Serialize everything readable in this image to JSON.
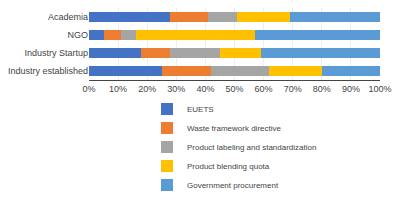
{
  "chart_data": {
    "type": "bar",
    "orientation": "horizontal",
    "stacked": true,
    "categories": [
      "Academia",
      "NGO",
      "Industry Startup",
      "Industry established"
    ],
    "series": [
      {
        "name": "EUETS",
        "color": "#4472c4",
        "values": [
          28,
          5,
          18,
          25
        ]
      },
      {
        "name": "Waste framework directive",
        "color": "#ed7d31",
        "values": [
          13,
          6,
          10,
          17
        ]
      },
      {
        "name": "Product labeling and standardization",
        "color": "#a5a5a5",
        "values": [
          10,
          5,
          17,
          20
        ]
      },
      {
        "name": "Product blending quota",
        "color": "#ffc000",
        "values": [
          18,
          41,
          14,
          18
        ]
      },
      {
        "name": "Government procurement",
        "color": "#5b9bd5",
        "values": [
          31,
          43,
          41,
          20
        ]
      }
    ],
    "xlim": [
      0,
      100
    ],
    "xticks": [
      {
        "value": 0,
        "label": "0%"
      },
      {
        "value": 10,
        "label": "10%"
      },
      {
        "value": 20,
        "label": "20%"
      },
      {
        "value": 30,
        "label": "30%"
      },
      {
        "value": 40,
        "label": "40%"
      },
      {
        "value": 50,
        "label": "50%"
      },
      {
        "value": 60,
        "label": "60%"
      },
      {
        "value": 70,
        "label": "70%"
      },
      {
        "value": 80,
        "label": "80%"
      },
      {
        "value": 90,
        "label": "90%"
      },
      {
        "value": 100,
        "label": "100%"
      }
    ],
    "grid": true,
    "legend": "bottom"
  }
}
